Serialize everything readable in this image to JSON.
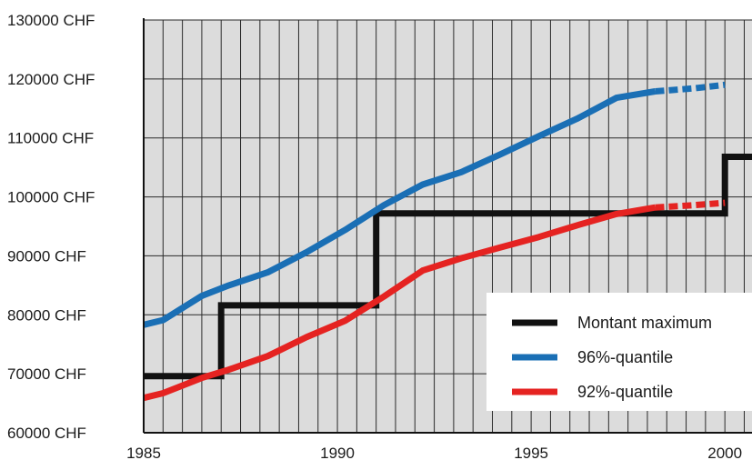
{
  "chart_data": {
    "type": "line",
    "title": "",
    "xlabel": "",
    "ylabel": "",
    "xlim": [
      1985,
      2000.7
    ],
    "ylim": [
      60000,
      130000
    ],
    "x_ticks": [
      1985,
      1990,
      1995,
      2000
    ],
    "x_tick_labels": [
      "1985",
      "1990",
      "1995",
      "2000"
    ],
    "y_ticks": [
      60000,
      70000,
      80000,
      90000,
      100000,
      110000,
      120000,
      130000
    ],
    "y_tick_labels": [
      "60000 CHF",
      "70000 CHF",
      "80000 CHF",
      "90000 CHF",
      "100000 CHF",
      "110000 CHF",
      "120000 CHF",
      "130000 CHF"
    ],
    "grid": true,
    "grid_columns_per_year": 2,
    "plot_background": "#dcdcdc",
    "legend_position": "bottom-right",
    "series": [
      {
        "name": "Montant maximum",
        "color": "#111111",
        "step": true,
        "x": [
          1985,
          1987,
          1987,
          1991,
          1991,
          2000,
          2000,
          2000.7
        ],
        "y": [
          69600,
          69600,
          81600,
          81600,
          97200,
          97200,
          106800,
          106800
        ],
        "dashed_from": null
      },
      {
        "name": "96%-quantile",
        "color": "#1a6fb5",
        "step": false,
        "x": [
          1985,
          1985.5,
          1986.5,
          1987.2,
          1988.2,
          1989.2,
          1990.2,
          1991.2,
          1992.2,
          1993.2,
          1994.2,
          1995.2,
          1996.2,
          1997.2,
          1998.2,
          1999.2,
          2000
        ],
        "y": [
          78300,
          79100,
          83200,
          85000,
          87200,
          90600,
          94400,
          98600,
          102100,
          104200,
          107200,
          110300,
          113300,
          116800,
          117900,
          118400,
          119000
        ],
        "dashed_from": 1998.2
      },
      {
        "name": "92%-quantile",
        "color": "#e52321",
        "step": false,
        "x": [
          1985,
          1985.5,
          1986.5,
          1987.2,
          1988.2,
          1989.2,
          1990.2,
          1991.2,
          1992.2,
          1993.2,
          1994.2,
          1995.2,
          1996.2,
          1997.2,
          1998.2,
          1999.2,
          2000
        ],
        "y": [
          65900,
          66700,
          69300,
          70700,
          73000,
          76200,
          79000,
          83100,
          87500,
          89600,
          91400,
          93200,
          95200,
          97100,
          98200,
          98600,
          99000
        ],
        "dashed_from": 1998.2
      }
    ]
  }
}
